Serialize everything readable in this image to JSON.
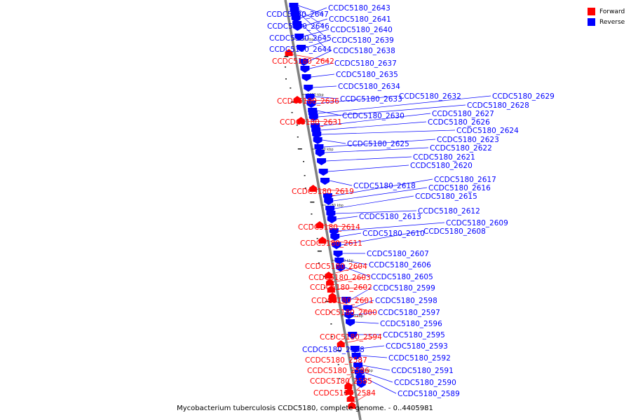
{
  "legend": {
    "items": [
      {
        "label": "Forward",
        "color": "#ff0000"
      },
      {
        "label": "Reverse",
        "color": "#0000ff"
      }
    ]
  },
  "colors": {
    "forward": "#ff0000",
    "reverse": "#0000ff",
    "backbone": "#808080"
  },
  "caption": "Mycobacterium tuberculosis CCDC5180, complete genome. - 0..4405981",
  "scale_marks": [
    {
      "kbp": 1210,
      "label": "1210 kbp"
    },
    {
      "kbp": 1200,
      "label": "1200 kbp"
    },
    {
      "kbp": 1190,
      "label": "1190 kbp"
    },
    {
      "kbp": 1180,
      "label": "1180 kbp"
    },
    {
      "kbp": 1170,
      "label": "1170 kbp"
    },
    {
      "kbp": 1160,
      "label": "1160 kbp"
    },
    {
      "kbp": 1150,
      "label": "1150 kbp"
    }
  ],
  "genes": [
    {
      "name": "CCDC5180_2647",
      "strand": "reverse"
    },
    {
      "name": "CCDC5180_2646",
      "strand": "reverse"
    },
    {
      "name": "CCDC5180_2645",
      "strand": "reverse"
    },
    {
      "name": "CCDC5180_2644",
      "strand": "reverse"
    },
    {
      "name": "CCDC5180_2643",
      "strand": "reverse"
    },
    {
      "name": "CCDC5180_2642",
      "strand": "forward"
    },
    {
      "name": "CCDC5180_2641",
      "strand": "reverse"
    },
    {
      "name": "CCDC5180_2640",
      "strand": "reverse"
    },
    {
      "name": "CCDC5180_2639",
      "strand": "reverse"
    },
    {
      "name": "CCDC5180_2638",
      "strand": "reverse"
    },
    {
      "name": "CCDC5180_2637",
      "strand": "reverse"
    },
    {
      "name": "CCDC5180_2636",
      "strand": "forward"
    },
    {
      "name": "CCDC5180_2635",
      "strand": "reverse"
    },
    {
      "name": "CCDC5180_2634",
      "strand": "reverse"
    },
    {
      "name": "CCDC5180_2633",
      "strand": "reverse"
    },
    {
      "name": "CCDC5180_2632",
      "strand": "reverse"
    },
    {
      "name": "CCDC5180_2631",
      "strand": "forward"
    },
    {
      "name": "CCDC5180_2630",
      "strand": "reverse"
    },
    {
      "name": "CCDC5180_2629",
      "strand": "reverse"
    },
    {
      "name": "CCDC5180_2628",
      "strand": "reverse"
    },
    {
      "name": "CCDC5180_2627",
      "strand": "reverse"
    },
    {
      "name": "CCDC5180_2626",
      "strand": "reverse"
    },
    {
      "name": "CCDC5180_2625",
      "strand": "reverse"
    },
    {
      "name": "CCDC5180_2624",
      "strand": "reverse"
    },
    {
      "name": "CCDC5180_2623",
      "strand": "reverse"
    },
    {
      "name": "CCDC5180_2622",
      "strand": "reverse"
    },
    {
      "name": "CCDC5180_2621",
      "strand": "reverse"
    },
    {
      "name": "CCDC5180_2620",
      "strand": "reverse"
    },
    {
      "name": "CCDC5180_2619",
      "strand": "forward"
    },
    {
      "name": "CCDC5180_2618",
      "strand": "reverse"
    },
    {
      "name": "CCDC5180_2617",
      "strand": "reverse"
    },
    {
      "name": "CCDC5180_2616",
      "strand": "reverse"
    },
    {
      "name": "CCDC5180_2615",
      "strand": "reverse"
    },
    {
      "name": "CCDC5180_2614",
      "strand": "forward"
    },
    {
      "name": "CCDC5180_2613",
      "strand": "reverse"
    },
    {
      "name": "CCDC5180_2612",
      "strand": "reverse"
    },
    {
      "name": "CCDC5180_2611",
      "strand": "forward"
    },
    {
      "name": "CCDC5180_2610",
      "strand": "reverse"
    },
    {
      "name": "CCDC5180_2609",
      "strand": "reverse"
    },
    {
      "name": "CCDC5180_2608",
      "strand": "reverse"
    },
    {
      "name": "CCDC5180_2607",
      "strand": "reverse"
    },
    {
      "name": "CCDC5180_2606",
      "strand": "reverse"
    },
    {
      "name": "CCDC5180_2605",
      "strand": "reverse"
    },
    {
      "name": "CCDC5180_2604",
      "strand": "forward"
    },
    {
      "name": "CCDC5180_2603",
      "strand": "forward"
    },
    {
      "name": "CCDC5180_2602",
      "strand": "forward"
    },
    {
      "name": "CCDC5180_2601",
      "strand": "forward"
    },
    {
      "name": "CCDC5180_2600",
      "strand": "forward"
    },
    {
      "name": "CCDC5180_2599",
      "strand": "reverse"
    },
    {
      "name": "CCDC5180_2598",
      "strand": "reverse"
    },
    {
      "name": "CCDC5180_2597",
      "strand": "reverse"
    },
    {
      "name": "CCDC5180_2596",
      "strand": "reverse"
    },
    {
      "name": "CCDC5180_2595",
      "strand": "reverse"
    },
    {
      "name": "CCDC5180_2594",
      "strand": "forward"
    },
    {
      "name": "CCDC5180_2593",
      "strand": "reverse"
    },
    {
      "name": "CCDC5180_2592",
      "strand": "reverse"
    },
    {
      "name": "CCDC5180_2591",
      "strand": "reverse"
    },
    {
      "name": "CCDC5180_2590",
      "strand": "reverse"
    },
    {
      "name": "CCDC5180_2589",
      "strand": "reverse"
    },
    {
      "name": "CCDC5180_2588",
      "strand": "reverse"
    },
    {
      "name": "CCDC5180_2587",
      "strand": "forward"
    },
    {
      "name": "CCDC5180_2586",
      "strand": "forward"
    },
    {
      "name": "CCDC5180_2585",
      "strand": "forward"
    },
    {
      "name": "CCDC5180_2584",
      "strand": "forward"
    }
  ]
}
